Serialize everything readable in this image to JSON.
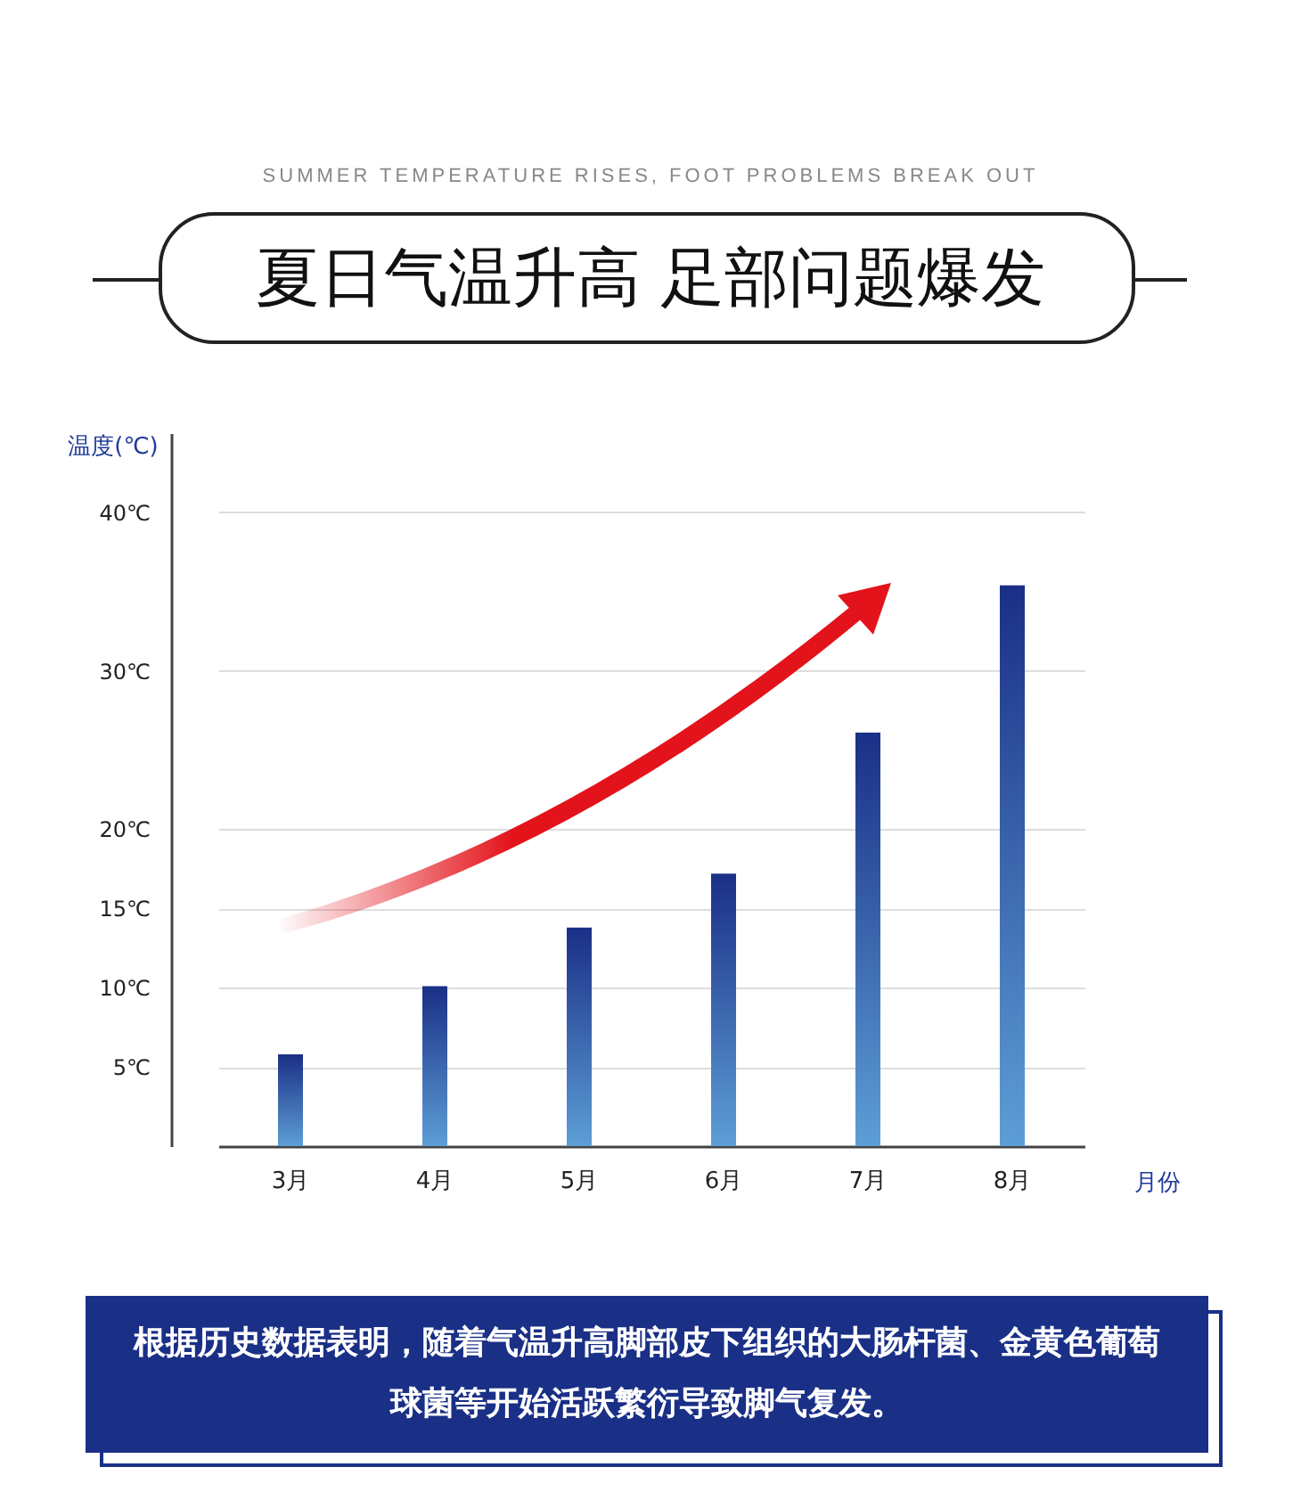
{
  "chart_data": {
    "type": "bar",
    "title": "夏日气温升高 足部问题爆发",
    "subtitle": "SUMMER TEMPERATURE RISES, FOOT PROBLEMS BREAK OUT",
    "xlabel": "月份",
    "ylabel": "温度(℃)",
    "categories": [
      "3月",
      "4月",
      "5月",
      "6月",
      "7月",
      "8月"
    ],
    "series": [
      {
        "color": "#1a2f86",
        "values": [
          5.8,
          10.1,
          13.8,
          17.2,
          26.1,
          35.4
        ]
      }
    ],
    "ylim": [
      0,
      45
    ],
    "yticks": [
      {
        "value": 5,
        "label": "5℃"
      },
      {
        "value": 10,
        "label": "10℃"
      },
      {
        "value": 15,
        "label": "15℃"
      },
      {
        "value": 20,
        "label": "20℃"
      },
      {
        "value": 30,
        "label": "30℃"
      },
      {
        "value": 40,
        "label": "40℃"
      }
    ],
    "grid": "y",
    "annotations": [
      "根据历史数据表明，随着气温升高脚部皮下组织的大肠杆菌、金黄色葡萄球菌等开始活跃繁衍导致脚气复发。"
    ]
  }
}
